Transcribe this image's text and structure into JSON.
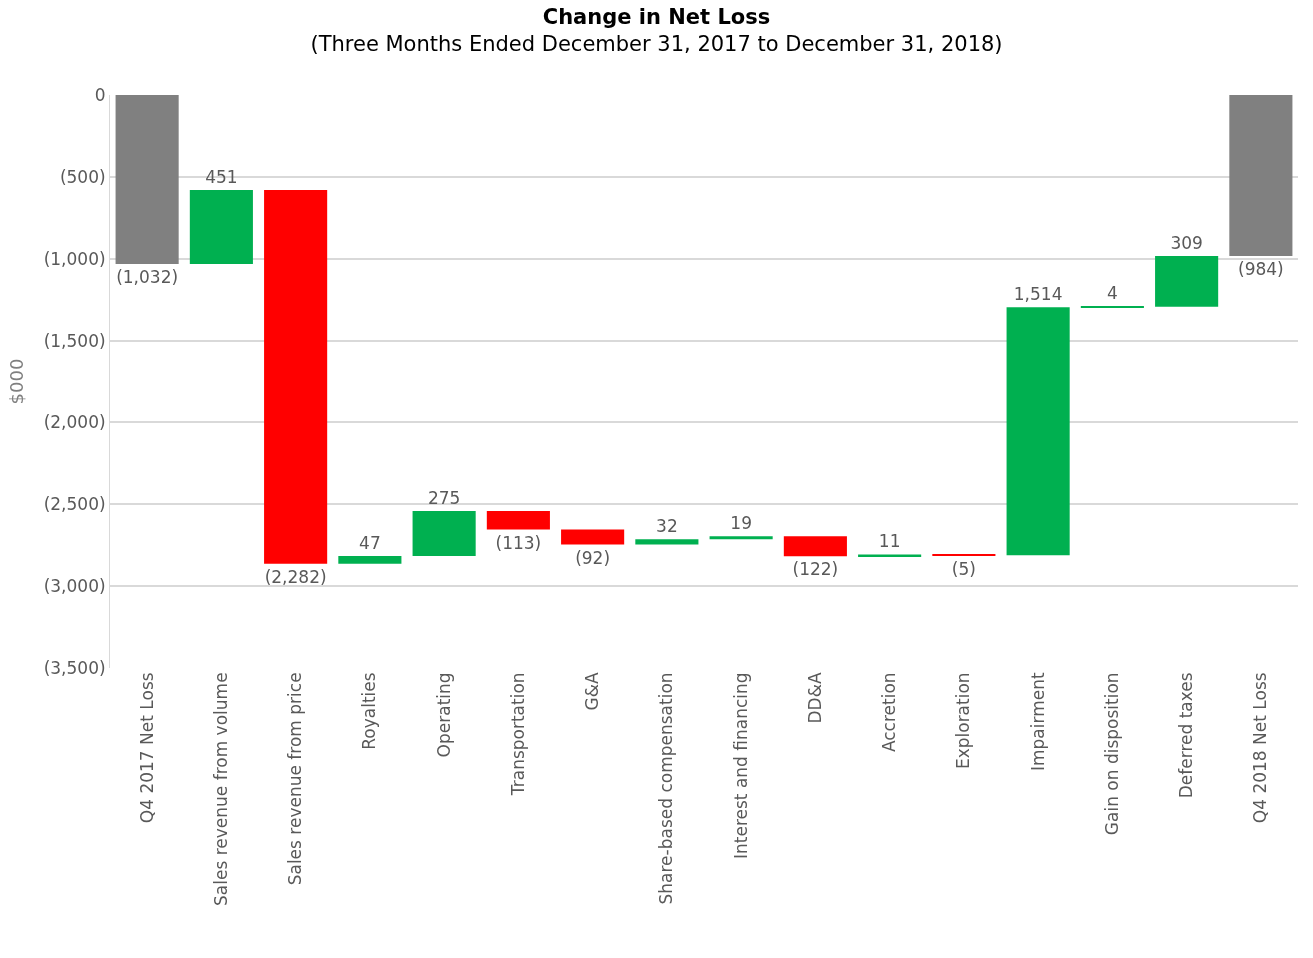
{
  "chart_data": {
    "type": "bar",
    "title": "Change in Net Loss",
    "subtitle": "(Three Months Ended December 31, 2017 to December 31, 2018)",
    "ylabel": "$000",
    "categories": [
      "Q4 2017 Net Loss",
      "Sales revenue from volume",
      "Sales revenue from price",
      "Royalties",
      "Operating",
      "Transportation",
      "G&A",
      "Share-based compensation",
      "Interest and financing",
      "DD&A",
      "Accretion",
      "Exploration",
      "Impairment",
      "Gain on disposition",
      "Deferred taxes",
      "Q4 2018 Net Loss"
    ],
    "values": [
      -1032,
      451,
      -2282,
      47,
      275,
      -113,
      -92,
      32,
      19,
      -122,
      11,
      -5,
      1514,
      4,
      309,
      -984
    ],
    "base": [
      0,
      -1032,
      -581,
      -2863,
      -2816,
      -2541,
      -2654,
      -2746,
      -2714,
      -2695,
      -2817,
      -2806,
      -2811,
      -1297,
      -1293,
      0
    ],
    "colors": [
      "#808080",
      "#00b050",
      "#ff0000",
      "#00b050",
      "#00b050",
      "#ff0000",
      "#ff0000",
      "#00b050",
      "#00b050",
      "#ff0000",
      "#00b050",
      "#ff0000",
      "#00b050",
      "#00b050",
      "#00b050",
      "#808080"
    ],
    "value_labels": [
      "(1,032)",
      "451",
      "(2,282)",
      "47",
      "275",
      "(113)",
      "(92)",
      "32",
      "19",
      "(122)",
      "11",
      "(5)",
      "1,514",
      "4",
      "309",
      "(984)"
    ],
    "ylim": [
      -3500,
      0
    ],
    "yticks": [
      {
        "value": 0,
        "label": "0"
      },
      {
        "value": -500,
        "label": "(500)"
      },
      {
        "value": -1000,
        "label": "(1,000)"
      },
      {
        "value": -1500,
        "label": "(1,500)"
      },
      {
        "value": -2000,
        "label": "(2,000)"
      },
      {
        "value": -2500,
        "label": "(2,500)"
      },
      {
        "value": -3000,
        "label": "(3,000)"
      },
      {
        "value": -3500,
        "label": "(3,500)"
      }
    ],
    "grid": "y",
    "legend": false
  }
}
